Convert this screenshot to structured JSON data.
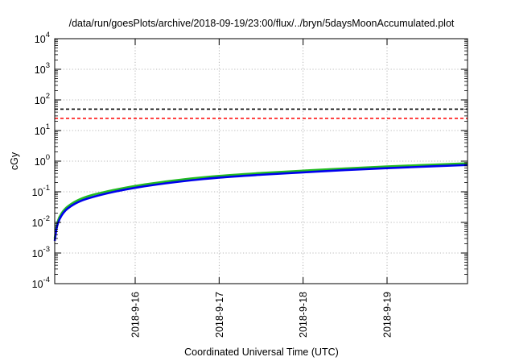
{
  "chart_data": {
    "type": "line",
    "title": "/data/run/goesPlots/archive/2018-09-19/23:00/flux/../bryn/5daysMoonAccumulated.plot",
    "xlabel": "Coordinated Universal Time (UTC)",
    "ylabel": "cGy",
    "y_scale": "log",
    "ylim": [
      0.0001,
      10000
    ],
    "xlim": [
      "2018-09-15 01:00",
      "2018-09-19 23:00"
    ],
    "grid": true,
    "legend": "none",
    "x_ticks": [
      "2018-9-16",
      "2018-9-17",
      "2018-9-18",
      "2018-9-19"
    ],
    "y_ticks": [
      {
        "value": 0.0001,
        "base": "10",
        "exp": "-4"
      },
      {
        "value": 0.001,
        "base": "10",
        "exp": "-3"
      },
      {
        "value": 0.01,
        "base": "10",
        "exp": "-2"
      },
      {
        "value": 0.1,
        "base": "10",
        "exp": "-1"
      },
      {
        "value": 1,
        "base": "10",
        "exp": "0"
      },
      {
        "value": 10,
        "base": "10",
        "exp": "1"
      },
      {
        "value": 100,
        "base": "10",
        "exp": "2"
      },
      {
        "value": 1000,
        "base": "10",
        "exp": "3"
      },
      {
        "value": 10000,
        "base": "10",
        "exp": "4"
      }
    ],
    "reference_lines": [
      {
        "value": 50,
        "color": "#000000",
        "style": "dashed"
      },
      {
        "value": 25,
        "color": "#ff0000",
        "style": "dashed"
      }
    ],
    "series": [
      {
        "color": "#22bb22",
        "x": [
          "2018-09-15 01:00",
          "2018-09-15 01:30",
          "2018-09-15 02:00",
          "2018-09-15 03:00",
          "2018-09-15 04:00",
          "2018-09-15 06:00",
          "2018-09-15 09:00",
          "2018-09-15 12:00",
          "2018-09-15 18:00",
          "2018-09-16 00:00",
          "2018-09-16 12:00",
          "2018-09-17 00:00",
          "2018-09-17 12:00",
          "2018-09-18 00:00",
          "2018-09-18 12:00",
          "2018-09-19 00:00",
          "2018-09-19 12:00",
          "2018-09-19 23:00"
        ],
        "values": [
          0.003,
          0.007,
          0.012,
          0.02,
          0.028,
          0.042,
          0.062,
          0.08,
          0.115,
          0.155,
          0.24,
          0.33,
          0.41,
          0.49,
          0.58,
          0.67,
          0.76,
          0.85
        ]
      },
      {
        "color": "#0000ee",
        "x": [
          "2018-09-15 01:00",
          "2018-09-15 01:30",
          "2018-09-15 02:00",
          "2018-09-15 03:00",
          "2018-09-15 04:00",
          "2018-09-15 06:00",
          "2018-09-15 09:00",
          "2018-09-15 12:00",
          "2018-09-15 18:00",
          "2018-09-16 00:00",
          "2018-09-16 12:00",
          "2018-09-17 00:00",
          "2018-09-17 12:00",
          "2018-09-18 00:00",
          "2018-09-18 12:00",
          "2018-09-19 00:00",
          "2018-09-19 12:00",
          "2018-09-19 23:00"
        ],
        "values": [
          0.0025,
          0.006,
          0.01,
          0.017,
          0.024,
          0.036,
          0.053,
          0.068,
          0.1,
          0.135,
          0.21,
          0.29,
          0.36,
          0.43,
          0.51,
          0.59,
          0.67,
          0.75
        ]
      }
    ]
  }
}
